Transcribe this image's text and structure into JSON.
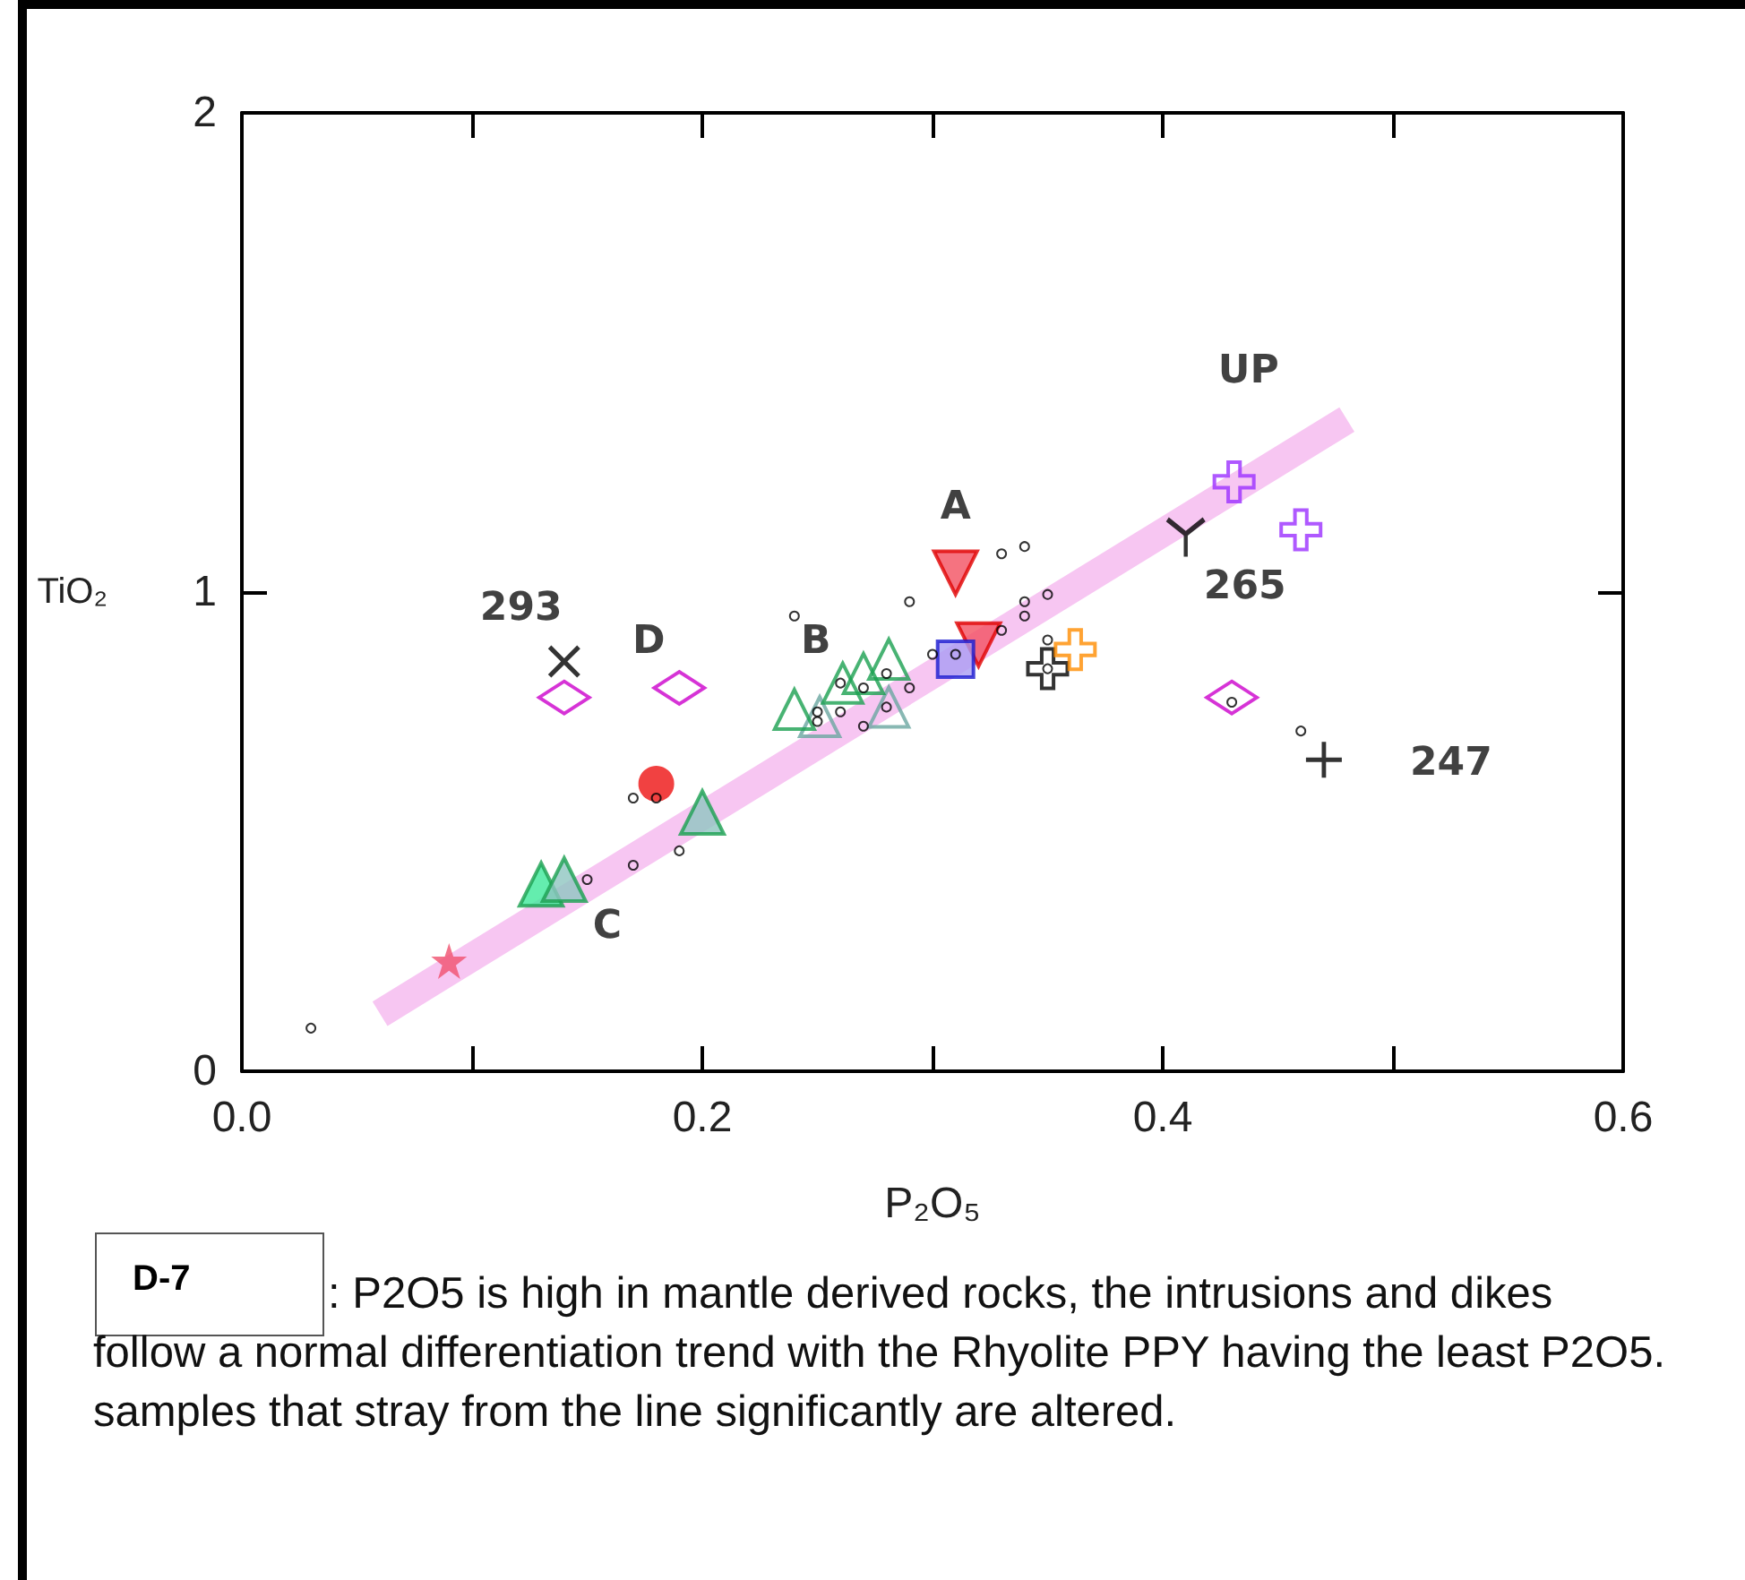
{
  "chart_data": {
    "type": "scatter",
    "xlabel": "P₂O₅",
    "ylabel": "TiO₂",
    "xlim": [
      0,
      0.6
    ],
    "ylim": [
      0,
      2
    ],
    "xticks": [
      {
        "value": 0,
        "label": "0.0"
      },
      {
        "value": 0.1,
        "label": null
      },
      {
        "value": 0.2,
        "label": "0.2"
      },
      {
        "value": 0.3,
        "label": null
      },
      {
        "value": 0.4,
        "label": "0.4"
      },
      {
        "value": 0.5,
        "label": null
      },
      {
        "value": 0.6,
        "label": "0.6"
      }
    ],
    "yticks": [
      0,
      1,
      2
    ],
    "series": [
      {
        "type": "line",
        "color": "#f7c6f2",
        "marker": "none",
        "x": [
          0.06,
          0.48
        ],
        "values": [
          0.12,
          1.36
        ]
      },
      {
        "color": "#000000",
        "marker": "circle",
        "x": [
          0.03,
          0.15,
          0.17,
          0.19,
          0.17,
          0.18,
          0.24,
          0.29,
          0.33,
          0.34,
          0.34,
          0.35,
          0.34,
          0.33,
          0.3,
          0.31,
          0.29,
          0.28,
          0.27,
          0.26,
          0.25,
          0.25,
          0.26,
          0.27,
          0.28,
          0.35,
          0.35,
          0.43,
          0.46
        ],
        "values": [
          0.09,
          0.4,
          0.43,
          0.46,
          0.57,
          0.57,
          0.95,
          0.98,
          1.08,
          1.095,
          0.98,
          0.995,
          0.95,
          0.92,
          0.87,
          0.87,
          0.8,
          0.83,
          0.8,
          0.81,
          0.75,
          0.73,
          0.75,
          0.72,
          0.76,
          0.84,
          0.9,
          0.77,
          0.71
        ]
      },
      {
        "color": "#f0506e",
        "marker": "star",
        "x": [
          0.09
        ],
        "values": [
          0.23
        ]
      },
      {
        "color": "#3de89a",
        "marker": "triangle",
        "x": [
          0.13
        ],
        "values": [
          0.39
        ]
      },
      {
        "name": "C",
        "color": "#8ec5c0",
        "marker": "triangle",
        "x": [
          0.14,
          0.2
        ],
        "values": [
          0.4,
          0.54
        ]
      },
      {
        "color": "#6aa6a0",
        "marker": "triangle",
        "x": [
          0.251,
          0.281
        ],
        "values": [
          0.74,
          0.76
        ]
      },
      {
        "name": "B",
        "color": "#1aa050",
        "marker": "triangle",
        "x": [
          0.24,
          0.261,
          0.27,
          0.281
        ],
        "values": [
          0.755,
          0.81,
          0.83,
          0.86
        ]
      },
      {
        "color": "#ee1111",
        "marker": "circle",
        "x": [
          0.18
        ],
        "values": [
          0.6
        ]
      },
      {
        "name": "D",
        "color": "#cc00cc",
        "marker": "diamond",
        "x": [
          0.14,
          0.19,
          0.43
        ],
        "values": [
          0.78,
          0.8,
          0.78
        ]
      },
      {
        "name": "293",
        "color": "#000000",
        "marker": "cross",
        "x": [
          0.14
        ],
        "values": [
          0.855
        ]
      },
      {
        "name": "A",
        "color": "#f25060",
        "marker": "triangle",
        "x": [
          0.31,
          0.32
        ],
        "values": [
          1.04,
          0.89
        ]
      },
      {
        "color": "#a99cf2",
        "marker": "square",
        "x": [
          0.31
        ],
        "values": [
          0.86
        ]
      },
      {
        "color": "#000000",
        "x": [
          0.35
        ],
        "values": [
          0.84
        ]
      },
      {
        "color": "#ff8c00",
        "marker": "cross",
        "x": [
          0.362
        ],
        "values": [
          0.88
        ]
      },
      {
        "name": "UP",
        "color": "#9b30ff",
        "marker": "cross",
        "x": [
          0.431,
          0.46
        ],
        "values": [
          1.23,
          1.13
        ]
      },
      {
        "name": "265",
        "color": "#000000",
        "x": [
          0.41
        ],
        "values": [
          1.115
        ]
      },
      {
        "name": "247",
        "color": "#000000",
        "marker": "cross",
        "x": [
          0.47
        ],
        "values": [
          0.65
        ]
      }
    ],
    "annotations": [
      "D-7",
      ": P2O5 is high in mantle derived rocks, the intrusions and dikes follow a normal differentiation trend with the Rhyolite PPY having the least P2O5.  samples that stray from the line significantly are altered."
    ]
  }
}
